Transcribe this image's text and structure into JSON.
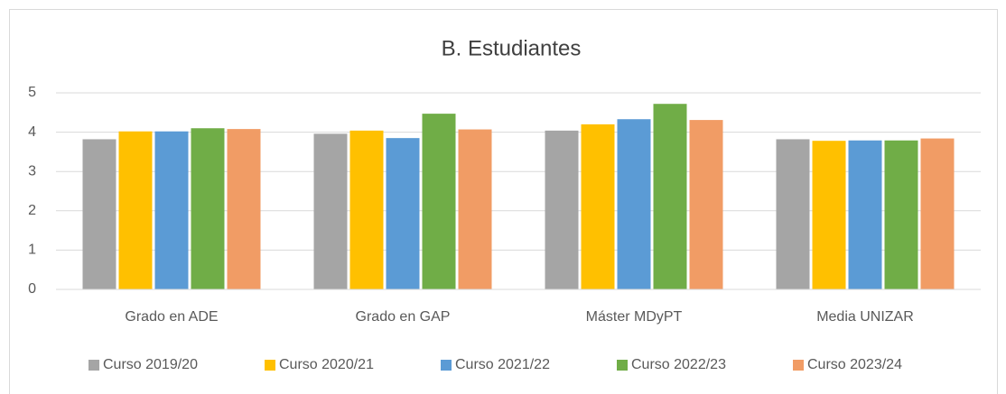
{
  "chart_data": {
    "type": "bar",
    "title": "B. Estudiantes",
    "categories": [
      "Grado en ADE",
      "Grado en GAP",
      "Máster MDyPT",
      "Media UNIZAR"
    ],
    "series": [
      {
        "name": "Curso 2019/20",
        "color": "#a5a5a5",
        "values": [
          3.82,
          3.96,
          4.04,
          3.82
        ]
      },
      {
        "name": "Curso 2020/21",
        "color": "#ffc000",
        "values": [
          4.02,
          4.04,
          4.2,
          3.78
        ]
      },
      {
        "name": "Curso 2021/22",
        "color": "#5b9bd5",
        "values": [
          4.02,
          3.85,
          4.33,
          3.79
        ]
      },
      {
        "name": "Curso 2022/23",
        "color": "#70ad47",
        "values": [
          4.1,
          4.47,
          4.72,
          3.79
        ]
      },
      {
        "name": "Curso 2023/24",
        "color": "#f19c65",
        "values": [
          4.08,
          4.07,
          4.31,
          3.84
        ]
      }
    ],
    "ylim": [
      0,
      5
    ],
    "yticks": [
      0,
      1,
      2,
      3,
      4,
      5
    ],
    "grid": true,
    "legend": "bottom"
  }
}
